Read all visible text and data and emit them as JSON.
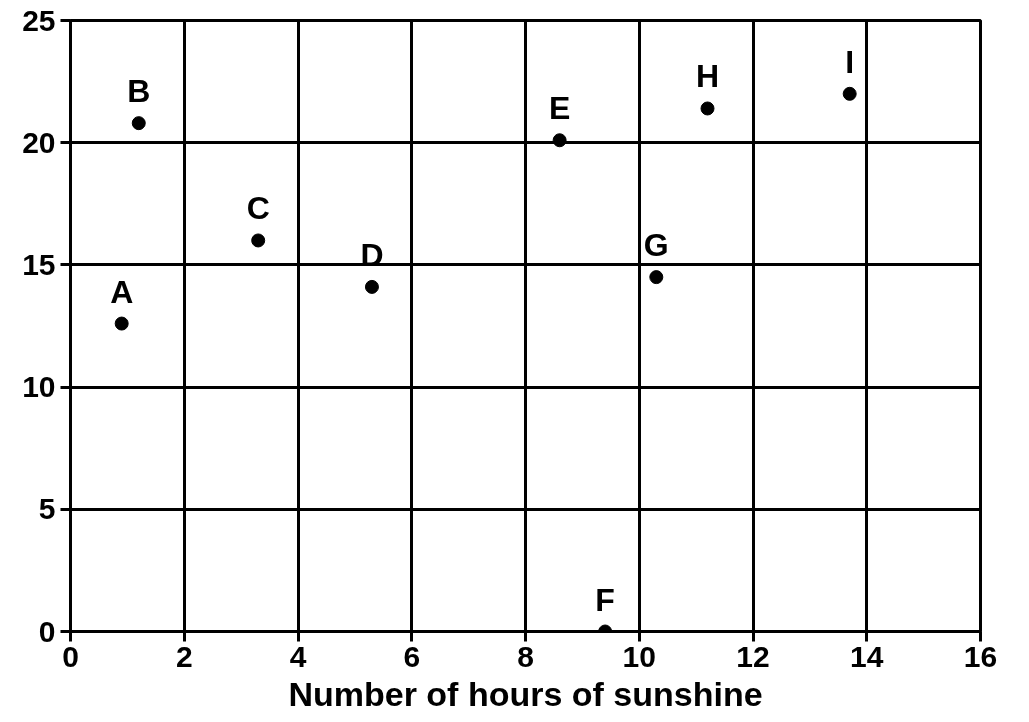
{
  "chart_data": {
    "type": "scatter",
    "xlabel": "Number of hours of sunshine",
    "x": [
      0.9,
      1.2,
      3.3,
      5.3,
      8.6,
      9.4,
      10.3,
      11.2,
      13.7
    ],
    "values": [
      12.6,
      20.8,
      16.0,
      14.1,
      20.1,
      0,
      14.5,
      21.4,
      22.0
    ],
    "color": "#000000",
    "marker": "circle",
    "xlim": [
      0,
      16
    ],
    "xticks": [
      0,
      2,
      4,
      6,
      8,
      10,
      12,
      14,
      16
    ],
    "ylim": [
      0,
      25
    ],
    "yticks": [
      0,
      5,
      10,
      15,
      20,
      25
    ],
    "grid": true,
    "annotations": [
      {
        "text": "A",
        "x": 0.9,
        "y": 12.6
      },
      {
        "text": "B",
        "x": 1.2,
        "y": 20.8
      },
      {
        "text": "C",
        "x": 3.3,
        "y": 16.0
      },
      {
        "text": "D",
        "x": 5.3,
        "y": 14.1
      },
      {
        "text": "E",
        "x": 8.6,
        "y": 20.1
      },
      {
        "text": "F",
        "x": 9.4,
        "y": 0
      },
      {
        "text": "G",
        "x": 10.3,
        "y": 14.5
      },
      {
        "text": "H",
        "x": 11.2,
        "y": 21.4
      },
      {
        "text": "I",
        "x": 13.7,
        "y": 22.0
      }
    ]
  }
}
